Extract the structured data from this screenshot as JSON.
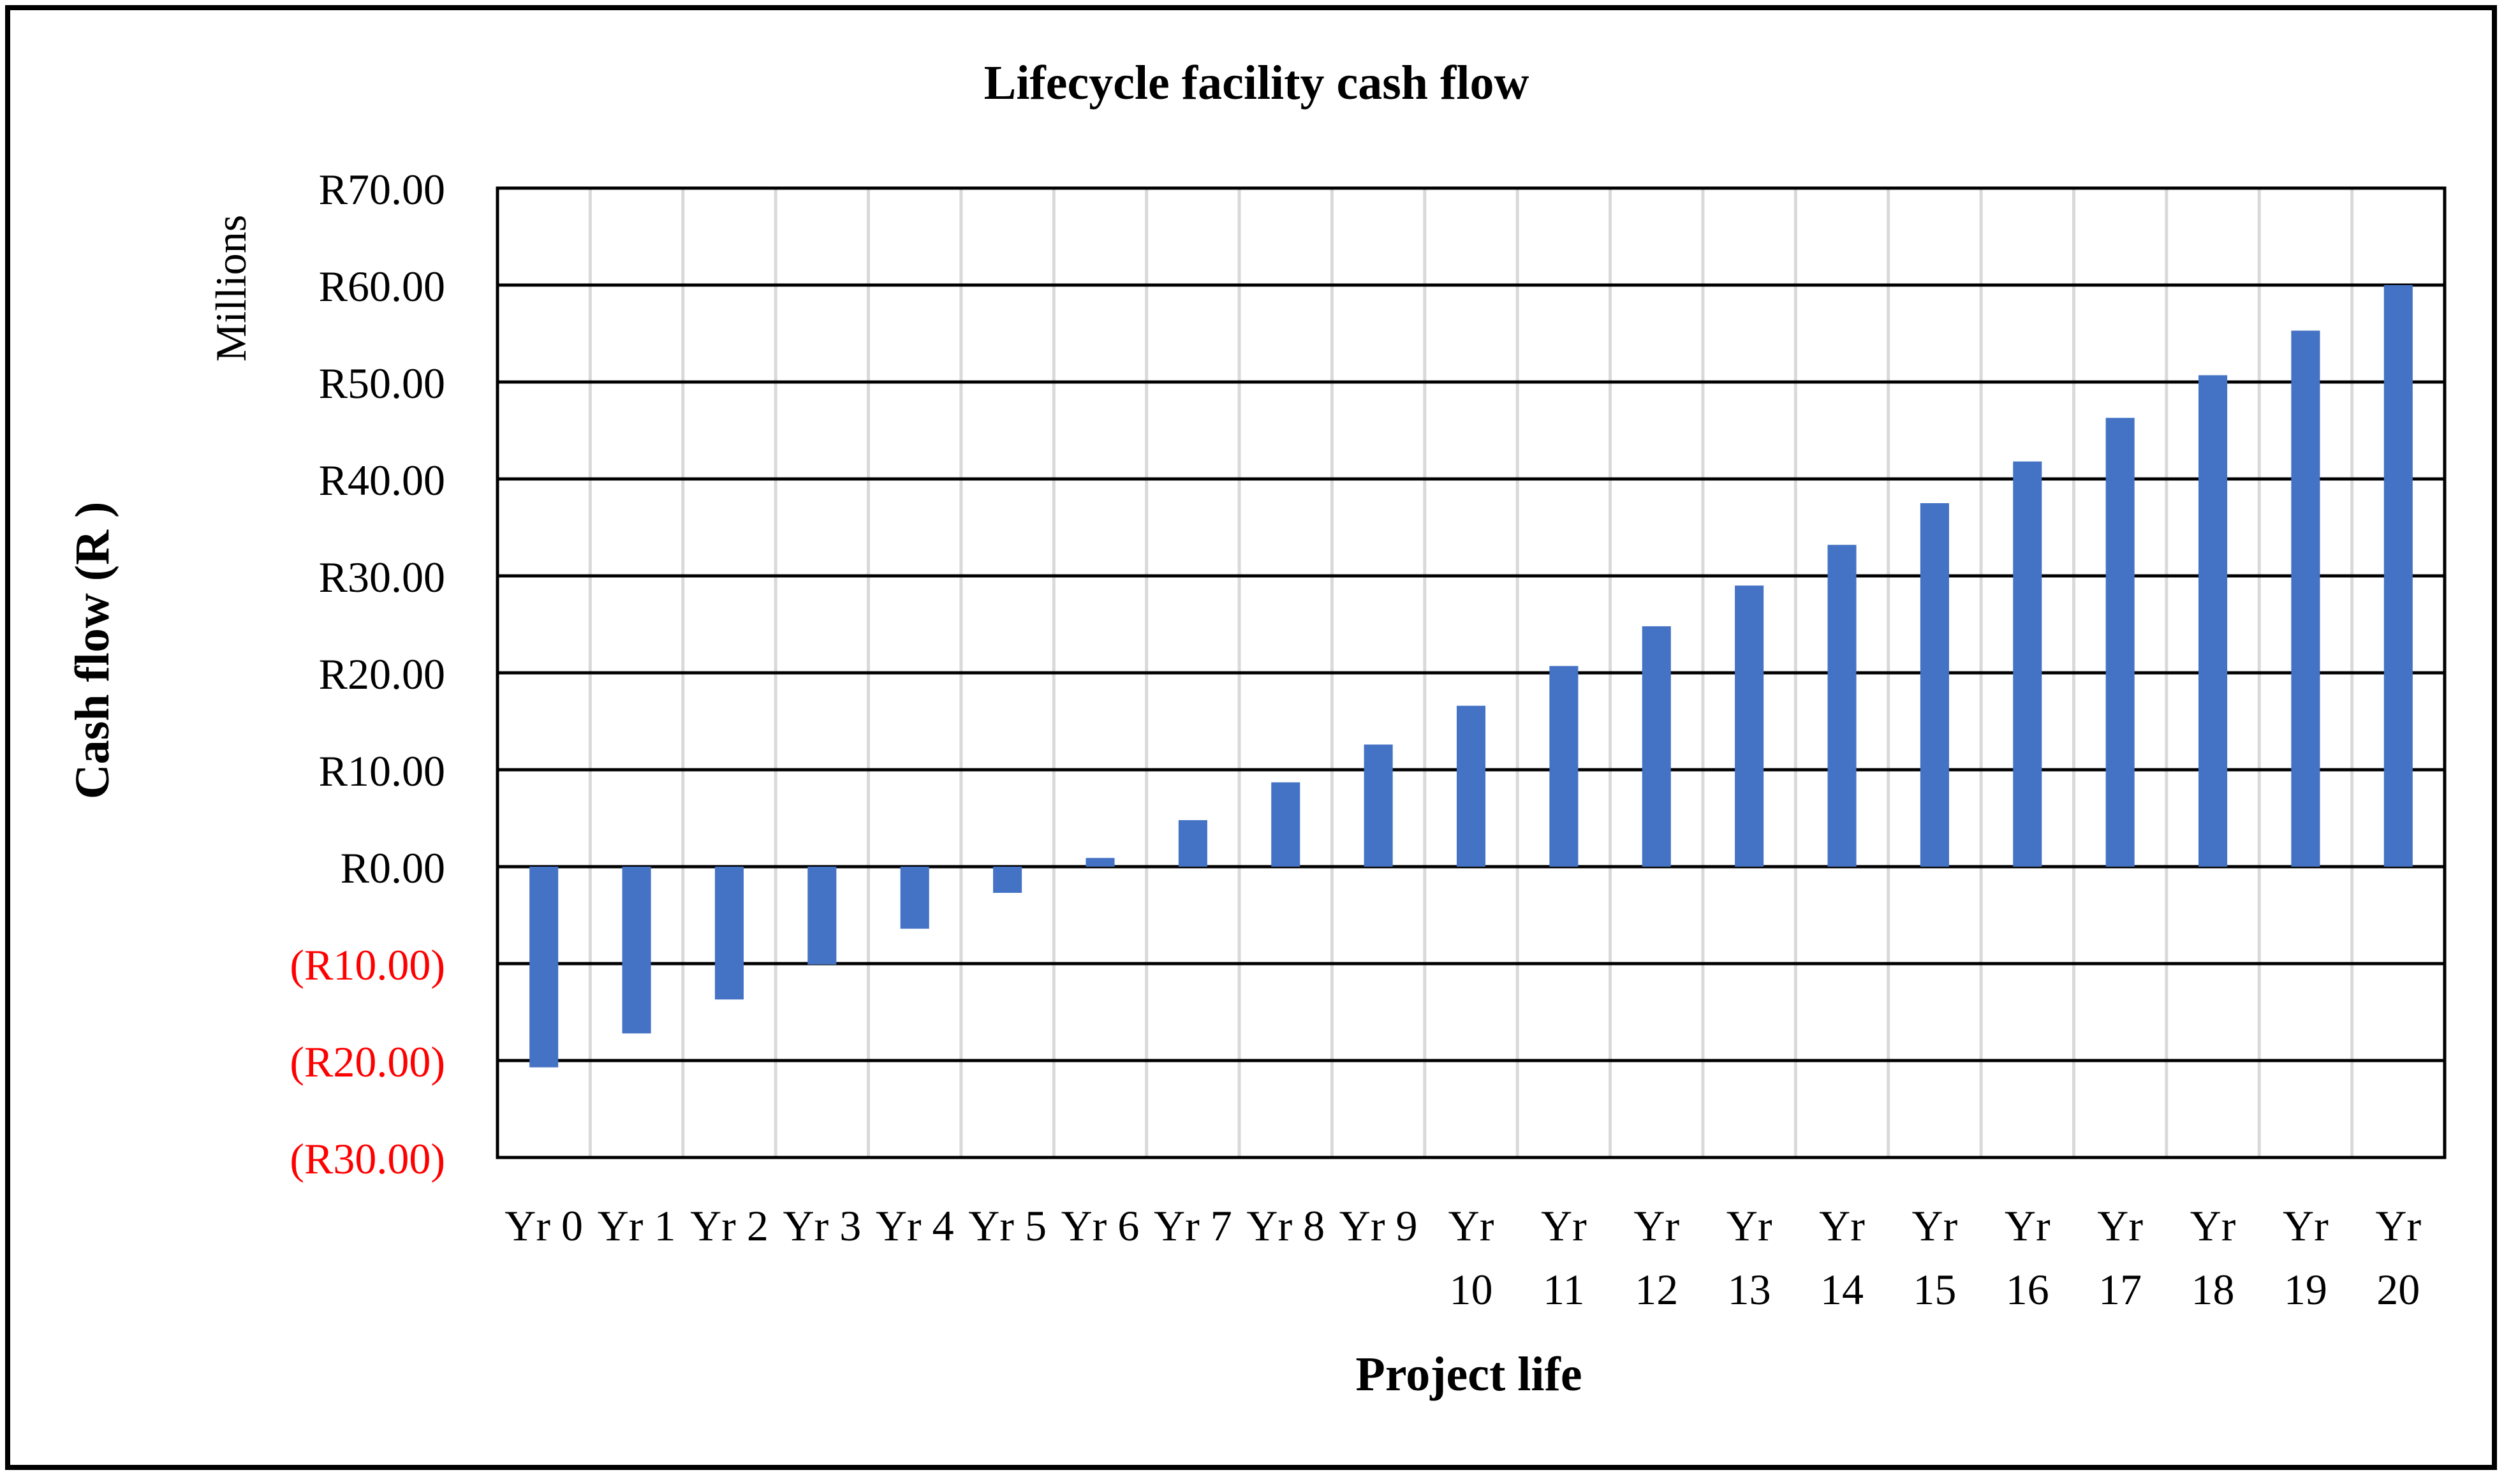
{
  "chart_data": {
    "type": "bar",
    "title": "Lifecycle facility cash flow",
    "xlabel": "Project life",
    "ylabel": "Cash flow (R )",
    "yunit": "Millions",
    "ylim": [
      -30,
      70
    ],
    "ytick_step": 10,
    "ytick_labels": [
      "(R30.00)",
      "(R20.00)",
      "(R10.00)",
      "R0.00",
      "R10.00",
      "R20.00",
      "R30.00",
      "R40.00",
      "R50.00",
      "R60.00",
      "R70.00"
    ],
    "categories": [
      "Yr 0",
      "Yr 1",
      "Yr 2",
      "Yr 3",
      "Yr 4",
      "Yr 5",
      "Yr 6",
      "Yr 7",
      "Yr 8",
      "Yr 9",
      "Yr 10",
      "Yr 11",
      "Yr 12",
      "Yr 13",
      "Yr 14",
      "Yr 15",
      "Yr 16",
      "Yr 17",
      "Yr 18",
      "Yr 19",
      "Yr 20"
    ],
    "values": [
      -20.7,
      -17.2,
      -13.7,
      -10.1,
      -6.4,
      -2.7,
      0.9,
      4.8,
      8.7,
      12.6,
      16.6,
      20.7,
      24.8,
      29.0,
      33.2,
      37.5,
      41.8,
      46.3,
      50.7,
      55.3,
      60.0
    ],
    "grid": true,
    "colors": {
      "bar": "#4472C4",
      "negative_tick": "#FF0000",
      "axis": "#000000",
      "gridline_minor": "#D9D9D9"
    }
  }
}
